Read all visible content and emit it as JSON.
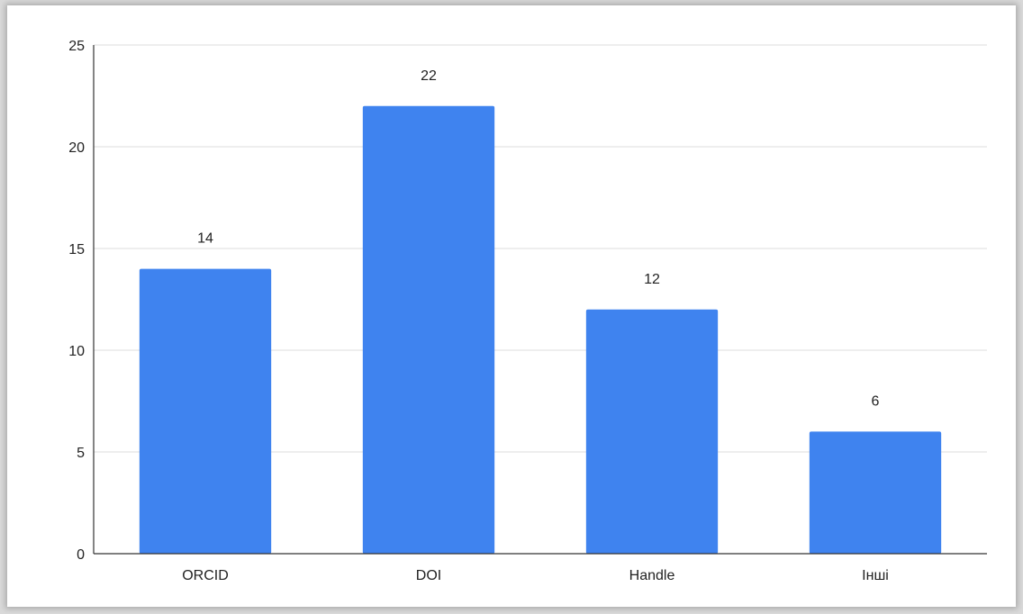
{
  "chart_data": {
    "type": "bar",
    "categories": [
      "ORCID",
      "DOI",
      "Handle",
      "Інші"
    ],
    "values": [
      14,
      22,
      12,
      6
    ],
    "data_labels": [
      "14",
      "22",
      "12",
      "6"
    ],
    "yticks": [
      "0",
      "5",
      "10",
      "15",
      "20",
      "25"
    ],
    "ylim": [
      0,
      25
    ],
    "title": "",
    "xlabel": "",
    "ylabel": "",
    "grid": true,
    "bar_color": "#3f83ef",
    "grid_color": "#dcdcdc",
    "axis_color": "#333333"
  }
}
